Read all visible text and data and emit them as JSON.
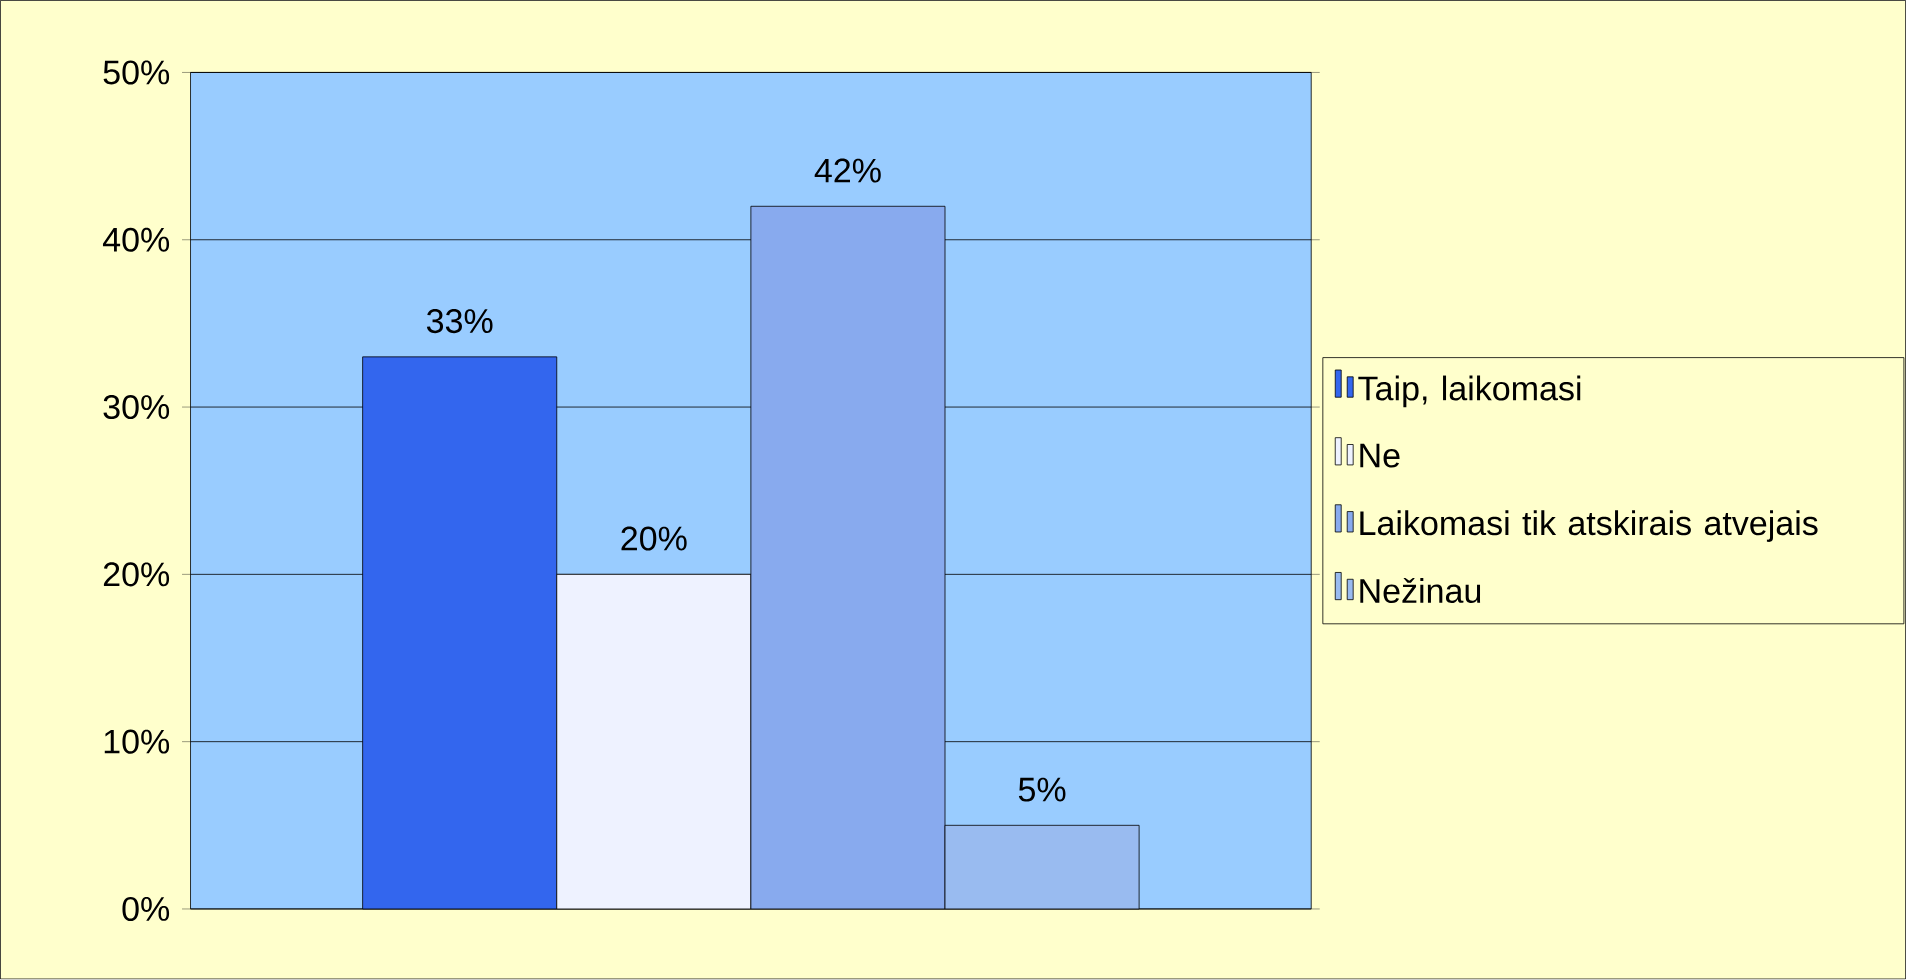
{
  "chart_data": {
    "type": "bar",
    "categories": [
      null
    ],
    "series": [
      {
        "name": "Taip, laikomasi",
        "color": "#3366ee",
        "values": [
          33
        ],
        "value_labels": [
          "33%"
        ]
      },
      {
        "name": "Ne",
        "color": "#eef2ff",
        "values": [
          20
        ],
        "value_labels": [
          "20%"
        ]
      },
      {
        "name": "Laikomasi tik atskirais atvejais",
        "color": "#88aaee",
        "values": [
          42
        ],
        "value_labels": [
          "42%"
        ]
      },
      {
        "name": "Nežinau",
        "color": "#99bbf0",
        "values": [
          5
        ],
        "value_labels": [
          "5%"
        ]
      }
    ],
    "ylim": [
      0,
      50
    ],
    "yticks": [
      {
        "value": 0,
        "label": "0%"
      },
      {
        "value": 10,
        "label": "10%"
      },
      {
        "value": 20,
        "label": "20%"
      },
      {
        "value": 30,
        "label": "30%"
      },
      {
        "value": 40,
        "label": "40%"
      },
      {
        "value": 50,
        "label": "50%"
      }
    ],
    "grid": "y",
    "legend": "right"
  }
}
